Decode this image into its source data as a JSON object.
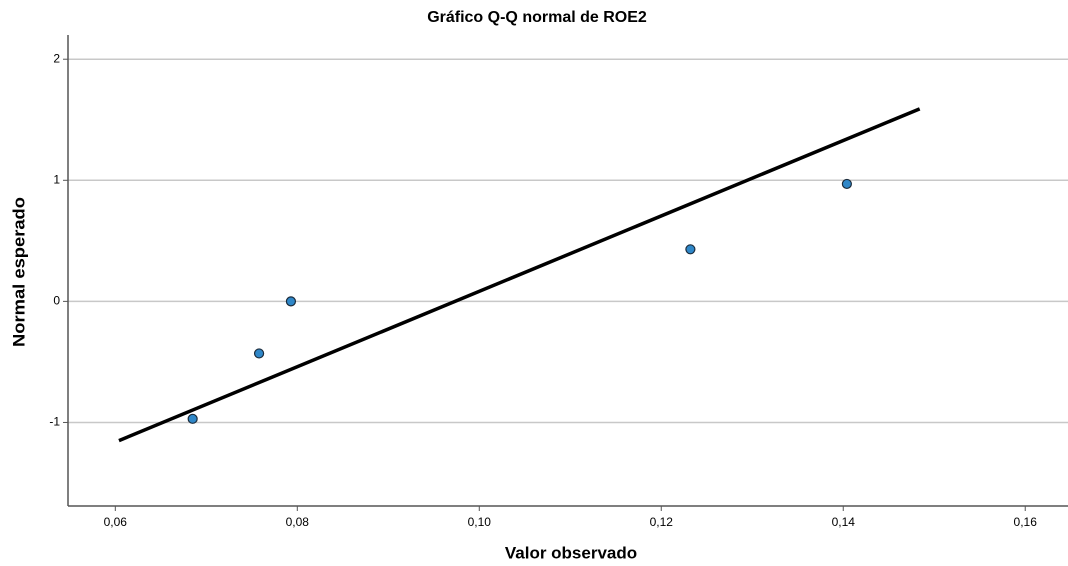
{
  "chart_data": {
    "type": "scatter",
    "title": "Gráfico Q-Q normal de ROE2",
    "x_label": "Valor observado",
    "y_label": "Normal esperado",
    "x": [
      0.0685,
      0.0758,
      0.0793,
      0.1232,
      0.1404
    ],
    "values": [
      -0.97,
      -0.43,
      0,
      0.43,
      0.97
    ],
    "color": "#2f87c8",
    "reference_line": {
      "x": [
        0.0604,
        0.1484
      ],
      "y": [
        -1.15,
        1.59
      ],
      "color": "#000000"
    },
    "xlim": [
      0.0548,
      0.1647
    ],
    "ylim": [
      -1.69,
      2.2
    ],
    "xticks": [
      {
        "value": 0.06,
        "label": "0,06"
      },
      {
        "value": 0.08,
        "label": "0,08"
      },
      {
        "value": 0.1,
        "label": "0,10"
      },
      {
        "value": 0.12,
        "label": "0,12"
      },
      {
        "value": 0.14,
        "label": "0,14"
      },
      {
        "value": 0.16,
        "label": "0,16"
      }
    ],
    "yticks": [
      2,
      1,
      0,
      -1
    ],
    "grid": true
  }
}
